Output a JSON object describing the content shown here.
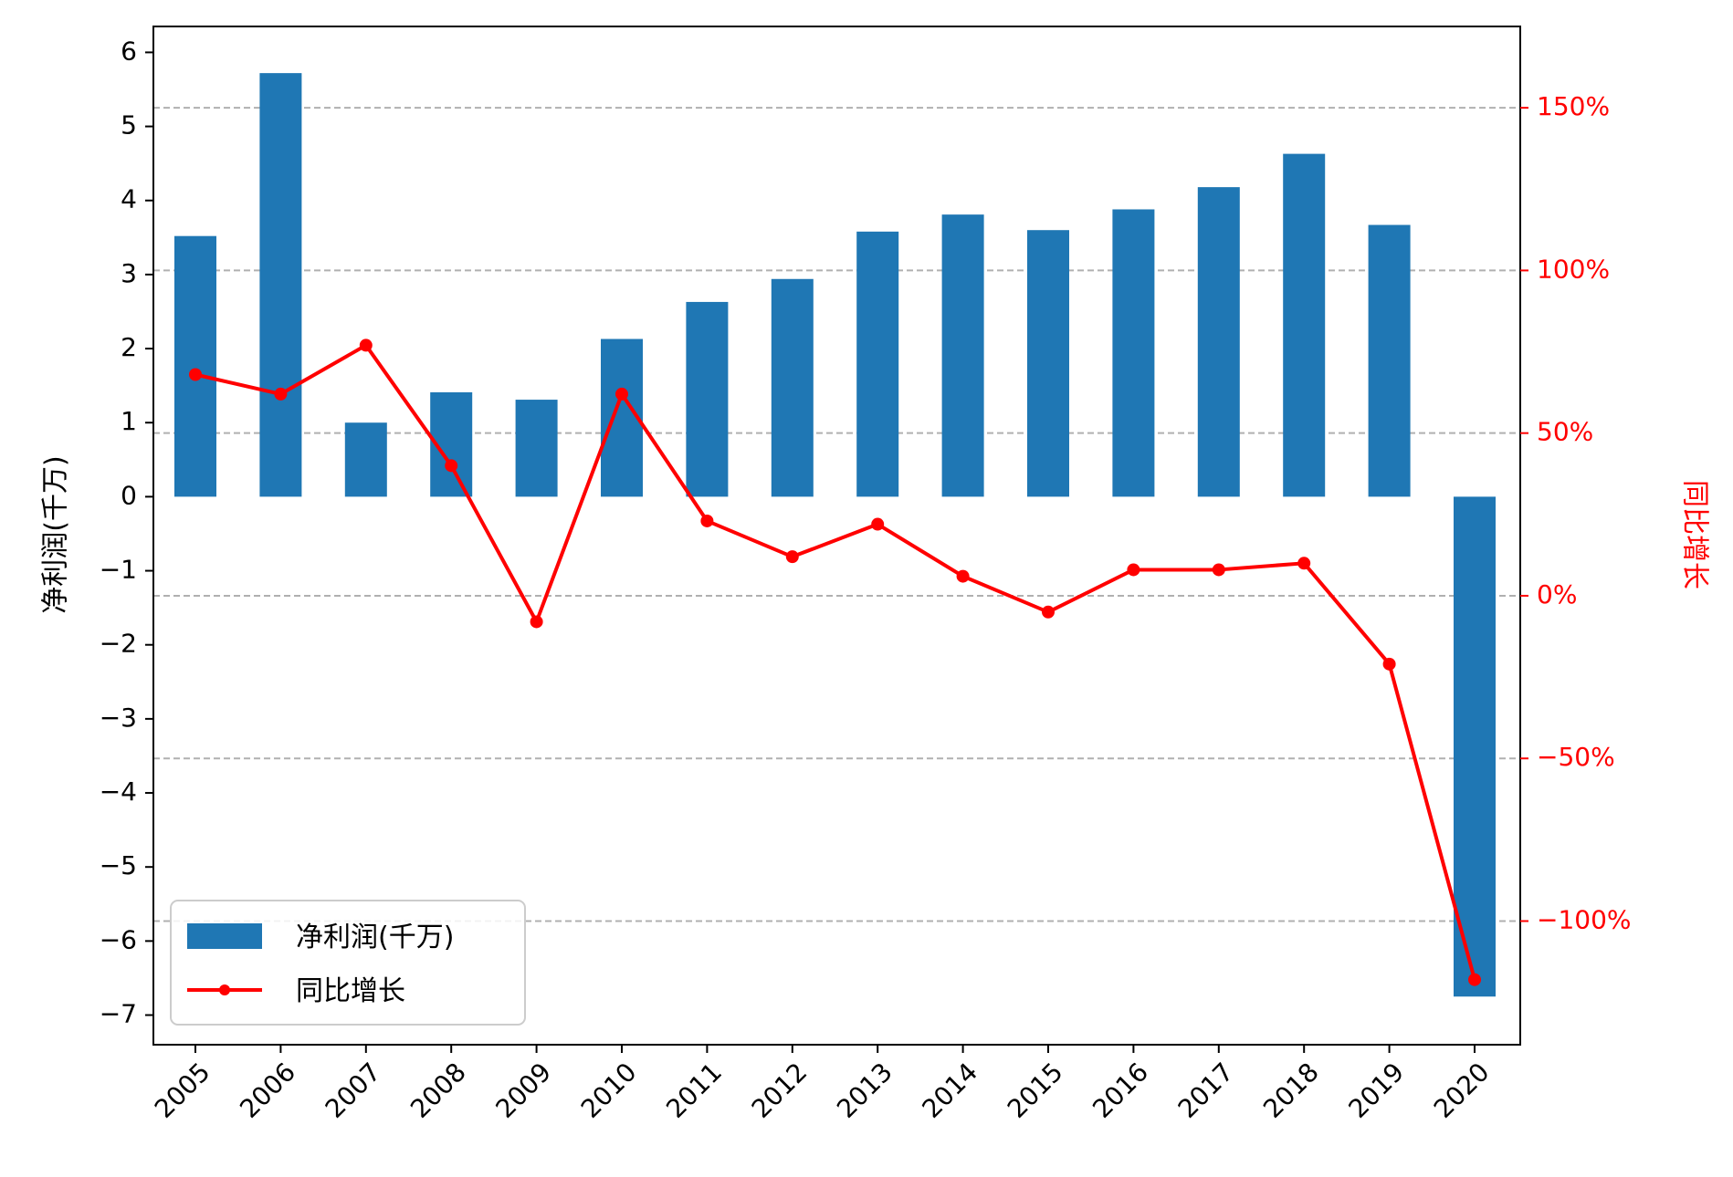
{
  "chart_data": {
    "type": "bar",
    "categories": [
      "2005",
      "2006",
      "2007",
      "2008",
      "2009",
      "2010",
      "2011",
      "2012",
      "2013",
      "2014",
      "2015",
      "2016",
      "2017",
      "2018",
      "2019",
      "2020"
    ],
    "series": [
      {
        "name": "净利润(千万)",
        "type": "bar",
        "axis": "left",
        "color": "#1f77b4",
        "values": [
          3.52,
          5.72,
          1.0,
          1.41,
          1.31,
          2.13,
          2.63,
          2.94,
          3.58,
          3.81,
          3.6,
          3.88,
          4.18,
          4.63,
          3.67,
          -6.75
        ]
      },
      {
        "name": "同比增长",
        "type": "line",
        "axis": "right",
        "color": "#ff0000",
        "values": [
          68,
          62,
          77,
          40,
          -8,
          62,
          23,
          12,
          22,
          6,
          -5,
          8,
          8,
          10,
          -21,
          -118
        ]
      }
    ],
    "ylabel_left": "净利润(千万)",
    "ylabel_right": "同比增长",
    "ylim_left": [
      -7.4,
      6.35
    ],
    "yticks_left": [
      6,
      5,
      4,
      3,
      2,
      1,
      0,
      -1,
      -2,
      -3,
      -4,
      -5,
      -6,
      -7
    ],
    "yticks_left_labels": [
      "6",
      "5",
      "4",
      "3",
      "2",
      "1",
      "0",
      "−1",
      "−2",
      "−3",
      "−4",
      "−5",
      "−6",
      "−7"
    ],
    "ylim_right": [
      -138,
      175
    ],
    "yticks_right": [
      150,
      100,
      50,
      0,
      -50,
      -100
    ],
    "yticks_right_labels": [
      "150%",
      "100%",
      "50%",
      "0%",
      "−50%",
      "−100%"
    ],
    "grid": "horizontal dashed at right-axis ticks",
    "legend": {
      "placement": "lower-left",
      "entries": [
        "净利润(千万)",
        "同比增长"
      ]
    },
    "right_axis_color": "#ff0000"
  }
}
